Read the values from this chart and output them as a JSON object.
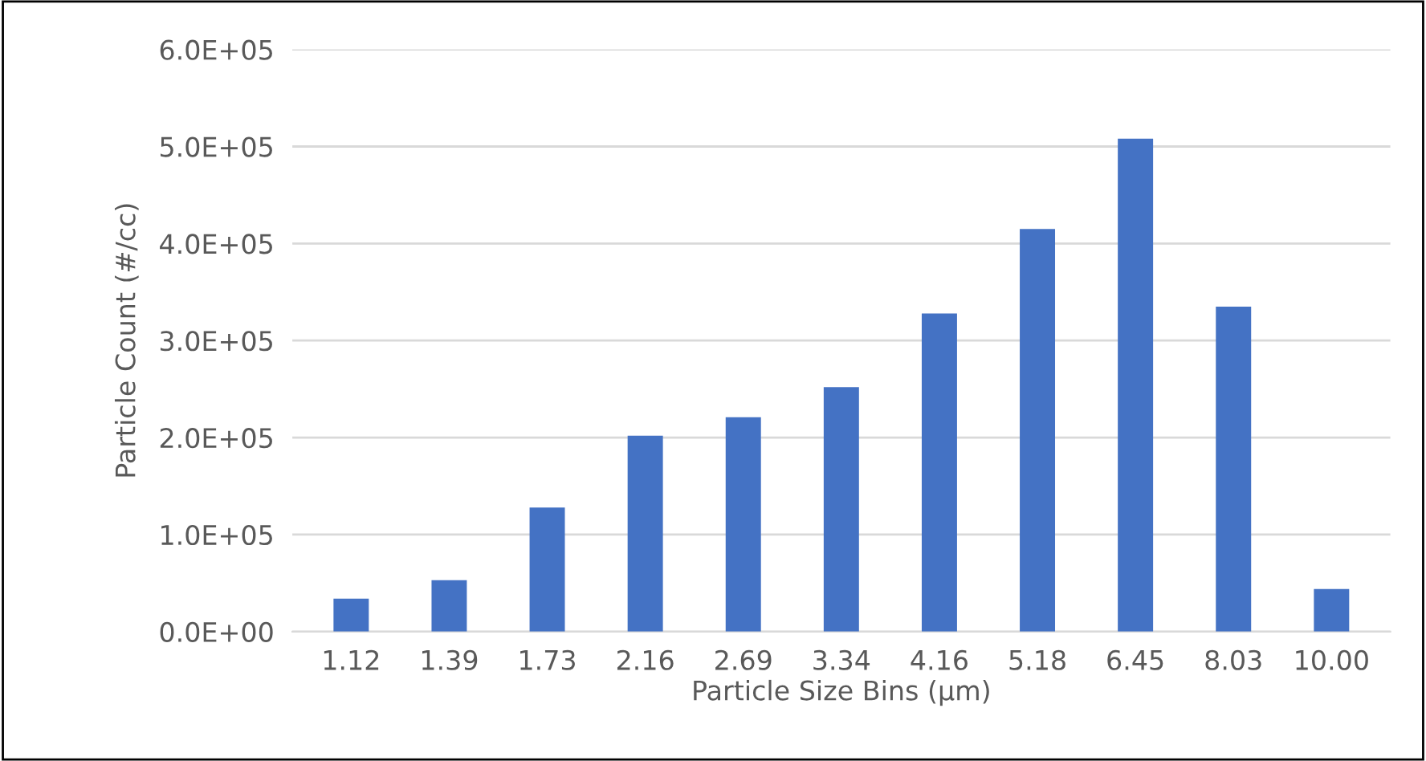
{
  "chart_data": {
    "type": "bar",
    "xlabel": "Particle Size Bins (µm)",
    "ylabel": "Particle Count (#/cc)",
    "categories": [
      "1.12",
      "1.39",
      "1.73",
      "2.16",
      "2.69",
      "3.34",
      "4.16",
      "5.18",
      "6.45",
      "8.03",
      "10.00"
    ],
    "values": [
      34000,
      53000,
      128000,
      202000,
      221000,
      252000,
      328000,
      415000,
      508000,
      335000,
      44000
    ],
    "color": "#4472c4",
    "ylim": [
      0,
      600000
    ],
    "yticks": [
      {
        "value": 0,
        "label": "0.0E+00"
      },
      {
        "value": 100000,
        "label": "1.0E+05"
      },
      {
        "value": 200000,
        "label": "2.0E+05"
      },
      {
        "value": 300000,
        "label": "3.0E+05"
      },
      {
        "value": 400000,
        "label": "4.0E+05"
      },
      {
        "value": 500000,
        "label": "5.0E+05"
      },
      {
        "value": 600000,
        "label": "6.0E+05"
      }
    ],
    "grid": "y",
    "legend": false
  }
}
